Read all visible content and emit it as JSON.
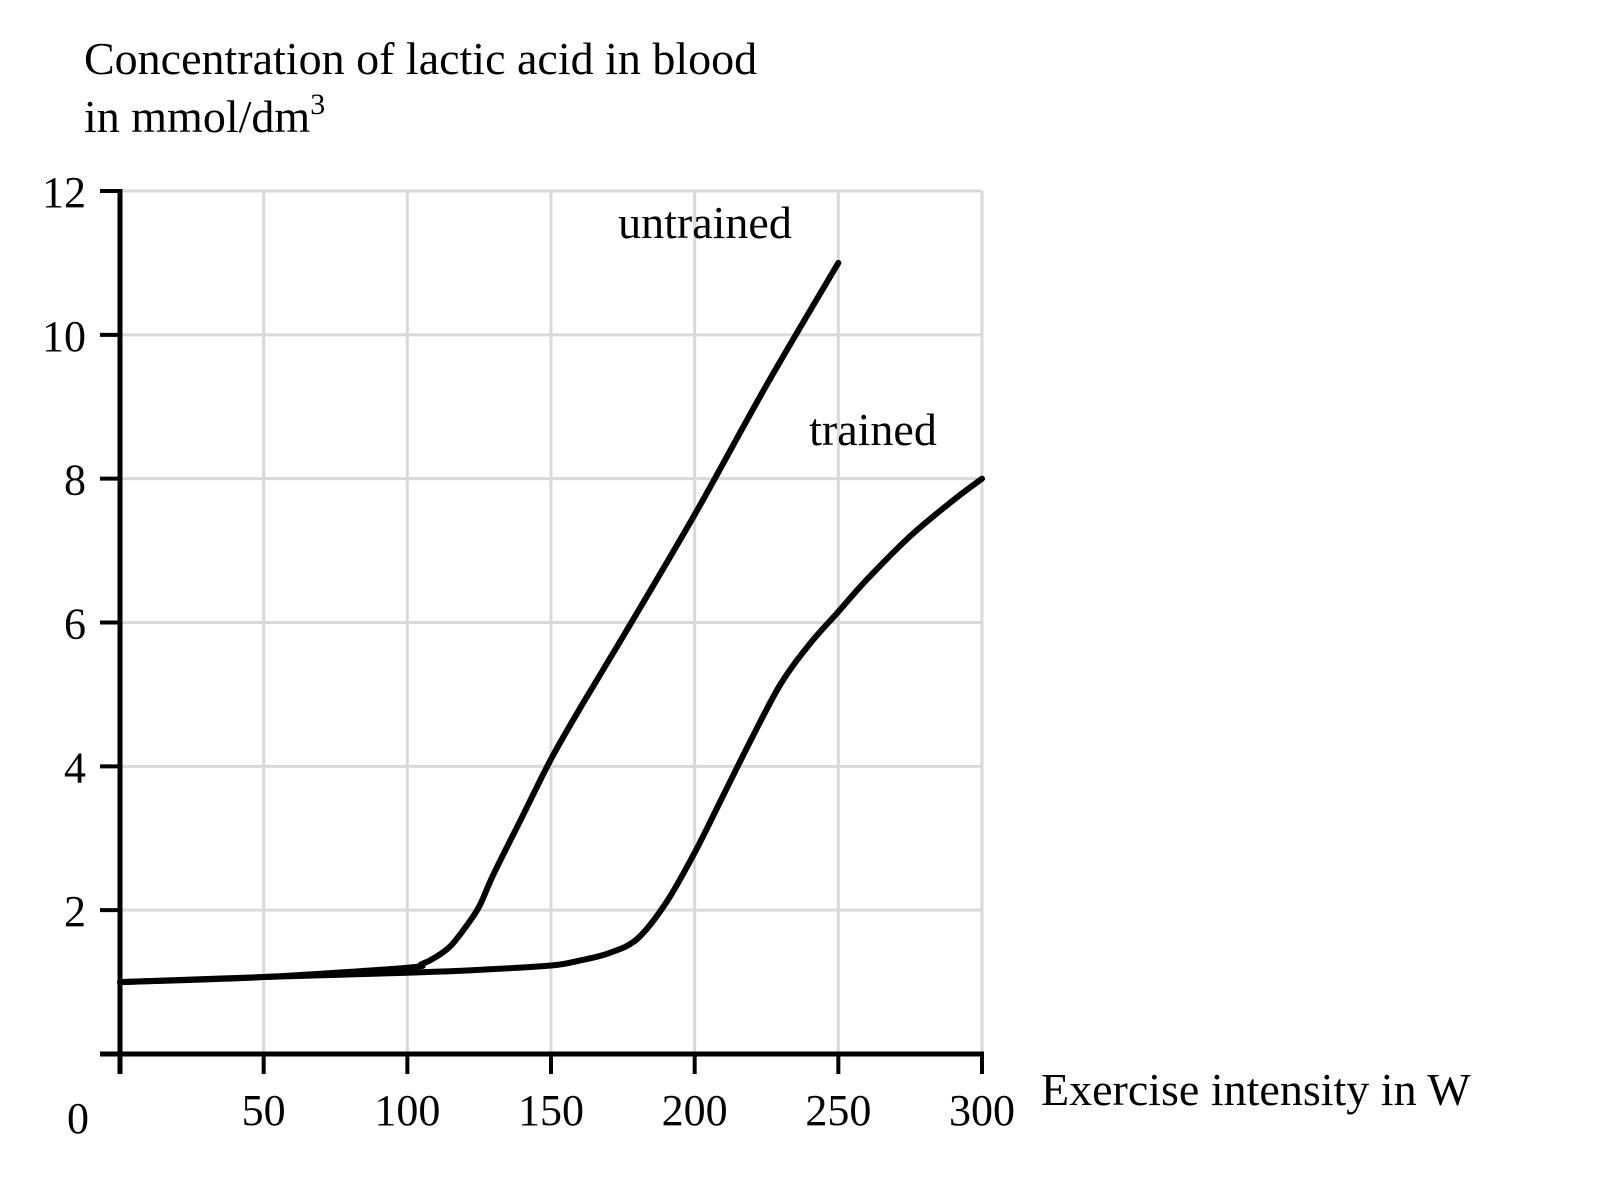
{
  "chart_data": {
    "type": "line",
    "ylabel": {
      "line1": "Concentration of lactic acid in blood",
      "line2_main": "in mmol/dm",
      "line2_sup": "3"
    },
    "xlabel": "Exercise intensity in W",
    "origin_label": "0",
    "xlim": [
      0,
      300
    ],
    "ylim": [
      0,
      12
    ],
    "x_ticks": [
      50,
      100,
      150,
      200,
      250,
      300
    ],
    "y_ticks": [
      2,
      4,
      6,
      8,
      10,
      12
    ],
    "grid": true,
    "series": [
      {
        "name": "untrained",
        "points": [
          [
            0,
            1.0
          ],
          [
            50,
            1.07
          ],
          [
            100,
            1.2
          ],
          [
            105,
            1.25
          ],
          [
            110,
            1.35
          ],
          [
            115,
            1.5
          ],
          [
            120,
            1.75
          ],
          [
            125,
            2.05
          ],
          [
            130,
            2.5
          ],
          [
            140,
            3.3
          ],
          [
            150,
            4.1
          ],
          [
            160,
            4.8
          ],
          [
            175,
            5.8
          ],
          [
            200,
            7.5
          ],
          [
            225,
            9.3
          ],
          [
            250,
            11.0
          ]
        ]
      },
      {
        "name": "trained",
        "points": [
          [
            0,
            1.0
          ],
          [
            50,
            1.07
          ],
          [
            100,
            1.13
          ],
          [
            125,
            1.17
          ],
          [
            150,
            1.23
          ],
          [
            160,
            1.3
          ],
          [
            170,
            1.4
          ],
          [
            180,
            1.6
          ],
          [
            190,
            2.1
          ],
          [
            200,
            2.8
          ],
          [
            210,
            3.6
          ],
          [
            220,
            4.4
          ],
          [
            230,
            5.15
          ],
          [
            240,
            5.7
          ],
          [
            250,
            6.15
          ],
          [
            260,
            6.6
          ],
          [
            275,
            7.2
          ],
          [
            290,
            7.7
          ],
          [
            300,
            8.0
          ]
        ]
      }
    ],
    "colors": {
      "axis": "#000000",
      "grid": "#d9d9d9",
      "line": "#000000"
    }
  }
}
